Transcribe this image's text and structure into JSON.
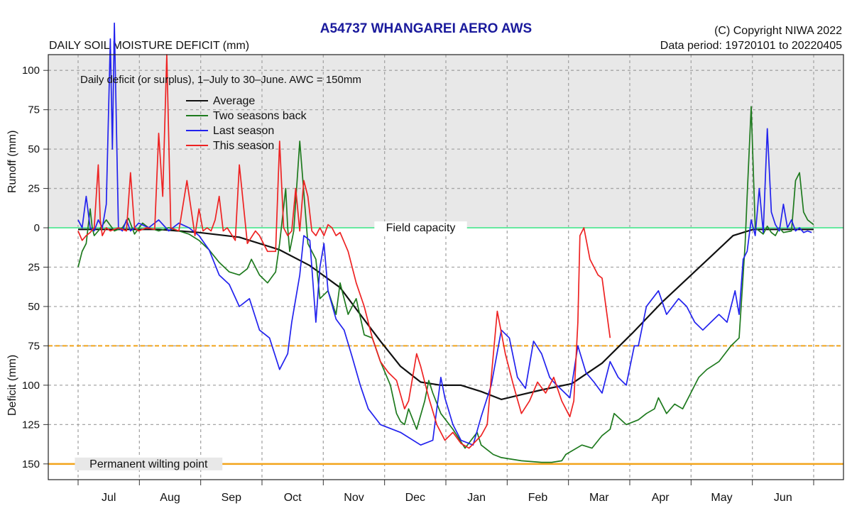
{
  "header": {
    "title": "A54737  WHANGAREI AERO AWS",
    "copyright": "(C) Copyright NIWA  2022",
    "data_period": "Data period:  19720101  to  20220405",
    "subtitle": "DAILY SOIL MOISTURE DEFICIT (mm)"
  },
  "chart_data": {
    "type": "line",
    "annotation": "Daily deficit (or surplus), 1–July to 30–June.  AWC = 150mm",
    "xlabel": "",
    "ylabel_top": "Runoff (mm)",
    "ylabel_bottom": "Deficit (mm)",
    "xlim": [
      0,
      365
    ],
    "ylim": [
      -110,
      160
    ],
    "months": [
      "Jul",
      "Aug",
      "Sep",
      "Oct",
      "Nov",
      "Dec",
      "Jan",
      "Feb",
      "Mar",
      "Apr",
      "May",
      "Jun"
    ],
    "yticks": [
      {
        "v": -100,
        "label": "100"
      },
      {
        "v": -75,
        "label": "75"
      },
      {
        "v": -50,
        "label": "50"
      },
      {
        "v": -25,
        "label": "25"
      },
      {
        "v": 0,
        "label": "0"
      },
      {
        "v": 25,
        "label": "25"
      },
      {
        "v": 50,
        "label": "50"
      },
      {
        "v": 75,
        "label": "75"
      },
      {
        "v": 100,
        "label": "100"
      },
      {
        "v": 125,
        "label": "125"
      },
      {
        "v": 150,
        "label": "150"
      }
    ],
    "reference_lines": [
      {
        "name": "Field capacity",
        "value": 0,
        "color": "#66e8a0"
      },
      {
        "name": "75",
        "value": 75,
        "color": "#f2a41a"
      },
      {
        "name": "Permanent wilting point",
        "value": 150,
        "color": "#f2a41a"
      }
    ],
    "legend_position": "top-left",
    "grid": true,
    "series": [
      {
        "name": "Average",
        "color": "#111111",
        "x": [
          0,
          20,
          40,
          60,
          80,
          100,
          115,
          130,
          140,
          150,
          160,
          170,
          180,
          190,
          200,
          210,
          220,
          230,
          245,
          260,
          275,
          290,
          305,
          315,
          325,
          335,
          345,
          365
        ],
        "y": [
          1,
          1,
          1,
          3,
          6,
          14,
          24,
          38,
          55,
          72,
          88,
          98,
          100,
          100,
          104,
          109,
          106,
          103,
          99,
          86,
          67,
          47,
          29,
          17,
          5,
          1,
          1,
          1
        ]
      },
      {
        "name": "Two seasons back",
        "color": "#1e7a1e",
        "x": [
          0,
          2,
          4,
          6,
          7,
          8,
          10,
          14,
          18,
          22,
          25,
          28,
          32,
          35,
          40,
          45,
          50,
          55,
          60,
          65,
          70,
          75,
          80,
          84,
          86,
          90,
          94,
          98,
          100,
          103,
          104,
          105,
          107,
          110,
          114,
          118,
          120,
          124,
          128,
          130,
          134,
          138,
          142,
          146,
          150,
          155,
          158,
          160,
          162,
          164,
          168,
          172,
          174,
          176,
          180,
          186,
          192,
          198,
          200,
          206,
          210,
          220,
          230,
          235,
          240,
          242,
          250,
          255,
          260,
          264,
          266,
          272,
          278,
          282,
          286,
          288,
          292,
          296,
          300,
          304,
          308,
          312,
          318,
          324,
          328,
          330,
          331,
          332,
          334,
          336,
          338,
          340,
          342,
          344,
          346,
          348,
          350,
          354,
          356,
          358,
          360,
          362,
          365
        ],
        "y": [
          25,
          15,
          10,
          -12,
          0,
          5,
          2,
          -5,
          2,
          0,
          -6,
          4,
          -3,
          0,
          2,
          0,
          2,
          4,
          8,
          14,
          22,
          28,
          30,
          26,
          20,
          30,
          35,
          28,
          10,
          -25,
          0,
          15,
          2,
          -55,
          10,
          20,
          45,
          40,
          55,
          35,
          55,
          45,
          68,
          70,
          85,
          100,
          118,
          123,
          125,
          115,
          128,
          110,
          97,
          105,
          118,
          128,
          140,
          130,
          138,
          144,
          146,
          148,
          149,
          149,
          148,
          144,
          138,
          140,
          132,
          128,
          118,
          125,
          122,
          118,
          115,
          108,
          118,
          112,
          115,
          105,
          95,
          90,
          85,
          75,
          70,
          30,
          10,
          -20,
          -77,
          0,
          2,
          4,
          -1,
          3,
          5,
          0,
          3,
          2,
          -30,
          -35,
          -10,
          -5,
          -2
        ]
      },
      {
        "name": "Last season",
        "color": "#2222ee",
        "x": [
          0,
          2,
          4,
          6,
          8,
          10,
          12,
          14,
          16,
          17,
          18,
          20,
          22,
          24,
          26,
          28,
          30,
          35,
          40,
          45,
          50,
          55,
          60,
          65,
          70,
          75,
          80,
          85,
          90,
          95,
          100,
          104,
          106,
          110,
          112,
          115,
          118,
          120,
          122,
          124,
          128,
          132,
          136,
          140,
          144,
          150,
          160,
          170,
          176,
          180,
          182,
          186,
          190,
          196,
          200,
          205,
          210,
          214,
          218,
          222,
          226,
          230,
          234,
          236,
          240,
          244,
          248,
          252,
          256,
          260,
          264,
          268,
          272,
          276,
          278,
          282,
          288,
          292,
          298,
          302,
          306,
          310,
          314,
          318,
          322,
          326,
          328,
          330,
          332,
          334,
          336,
          338,
          340,
          342,
          344,
          346,
          348,
          350,
          352,
          354,
          356,
          358,
          360,
          362,
          364
        ],
        "y": [
          -5,
          0,
          -20,
          0,
          2,
          -5,
          0,
          -15,
          -120,
          -50,
          -130,
          0,
          2,
          -5,
          2,
          0,
          -3,
          0,
          -5,
          2,
          -3,
          0,
          5,
          14,
          30,
          36,
          50,
          45,
          65,
          70,
          90,
          80,
          60,
          30,
          5,
          8,
          60,
          25,
          10,
          40,
          58,
          65,
          82,
          100,
          115,
          125,
          130,
          138,
          135,
          95,
          108,
          125,
          135,
          138,
          120,
          100,
          65,
          70,
          95,
          102,
          72,
          80,
          95,
          98,
          103,
          108,
          75,
          92,
          98,
          105,
          85,
          95,
          100,
          75,
          75,
          50,
          40,
          55,
          45,
          50,
          60,
          65,
          60,
          55,
          60,
          40,
          55,
          20,
          15,
          -5,
          5,
          -25,
          3,
          -63,
          -10,
          -2,
          2,
          -15,
          0,
          -5,
          2,
          0,
          3,
          2,
          3
        ]
      },
      {
        "name": "This season",
        "color": "#ee2222",
        "x": [
          0,
          2,
          4,
          6,
          8,
          10,
          11,
          12,
          14,
          16,
          20,
          24,
          26,
          28,
          30,
          34,
          38,
          40,
          42,
          44,
          46,
          50,
          54,
          58,
          60,
          62,
          64,
          66,
          68,
          70,
          72,
          74,
          76,
          78,
          80,
          84,
          88,
          90,
          92,
          94,
          98,
          100,
          102,
          104,
          106,
          108,
          110,
          112,
          114,
          116,
          118,
          120,
          122,
          124,
          126,
          128,
          130,
          134,
          138,
          142,
          146,
          150,
          154,
          158,
          162,
          164,
          168,
          170,
          174,
          178,
          182,
          186,
          190,
          194,
          200,
          203,
          205,
          208,
          212,
          216,
          220,
          224,
          228,
          232,
          236,
          240,
          244,
          246,
          248,
          249,
          251,
          254,
          258,
          260,
          264
        ],
        "y": [
          2,
          8,
          5,
          3,
          0,
          -40,
          -5,
          5,
          0,
          2,
          0,
          2,
          -35,
          0,
          2,
          0,
          1,
          -60,
          -20,
          -110,
          0,
          2,
          -30,
          5,
          -12,
          2,
          0,
          2,
          -5,
          -20,
          2,
          0,
          4,
          8,
          -40,
          10,
          2,
          5,
          10,
          15,
          15,
          -55,
          0,
          5,
          2,
          -25,
          2,
          -30,
          -20,
          2,
          5,
          0,
          5,
          -2,
          0,
          5,
          3,
          15,
          35,
          50,
          70,
          85,
          92,
          97,
          115,
          110,
          80,
          88,
          108,
          125,
          135,
          130,
          137,
          140,
          132,
          125,
          95,
          53,
          80,
          100,
          118,
          110,
          98,
          105,
          95,
          110,
          120,
          110,
          60,
          5,
          0,
          20,
          30,
          32,
          70
        ]
      }
    ]
  }
}
